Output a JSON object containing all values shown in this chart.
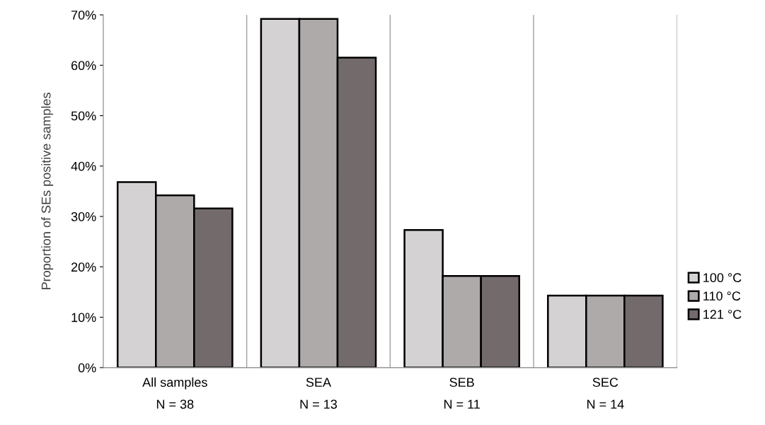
{
  "chart_data": {
    "type": "bar",
    "ylabel": "Proportion of SEs positive samples",
    "categories": [
      "All samples",
      "SEA",
      "SEB",
      "SEC"
    ],
    "series": [
      {
        "name": "100 °C",
        "color": "#d4d2d3",
        "values": [
          36.8,
          69.2,
          27.3,
          14.3
        ]
      },
      {
        "name": "110 °C",
        "color": "#aeaaaa",
        "values": [
          34.2,
          69.2,
          18.2,
          14.3
        ]
      },
      {
        "name": "121 °C",
        "color": "#736b6b",
        "values": [
          31.6,
          61.5,
          18.2,
          14.3
        ]
      }
    ],
    "annotations": [
      "N = 38",
      "N = 13",
      "N = 11",
      "N = 14"
    ],
    "ylim": [
      0,
      70
    ],
    "yticks": [
      {
        "value": 0,
        "label": "0%"
      },
      {
        "value": 10,
        "label": "10%"
      },
      {
        "value": 20,
        "label": "20%"
      },
      {
        "value": 30,
        "label": "30%"
      },
      {
        "value": 40,
        "label": "40%"
      },
      {
        "value": 50,
        "label": "50%"
      },
      {
        "value": 60,
        "label": "60%"
      },
      {
        "value": 70,
        "label": "70%"
      }
    ],
    "grid": "x",
    "legend": "right"
  }
}
